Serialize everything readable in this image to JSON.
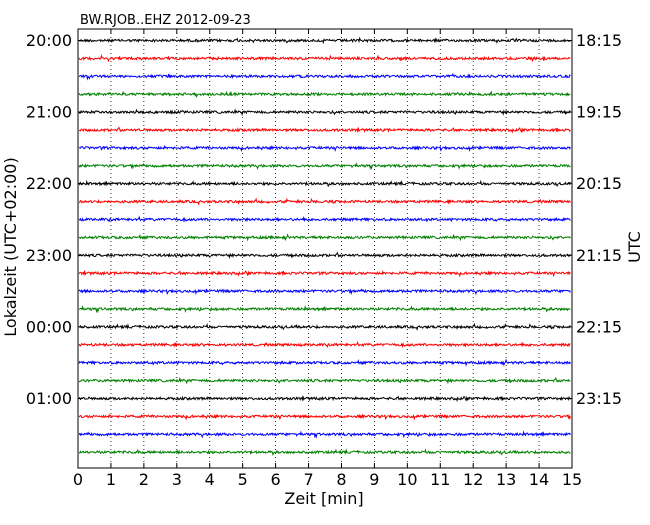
{
  "chart_data": {
    "type": "line",
    "title": "BW.RJOB..EHZ 2012-09-23",
    "xlabel": "Zeit  [min]",
    "ylabel_left": "Lokalzeit (UTC+02:00)",
    "ylabel_right": "UTC",
    "x_range": [
      0,
      15
    ],
    "x_ticks": [
      0,
      1,
      2,
      3,
      4,
      5,
      6,
      7,
      8,
      9,
      10,
      11,
      12,
      13,
      14,
      15
    ],
    "x_grid": "dotted vertical lines at each minute",
    "y_grid": false,
    "trace_interval_min": 15,
    "trace_count": 24,
    "trace_colors": [
      "#000000",
      "#ff0000",
      "#0000ff",
      "#008000"
    ],
    "left_tick_labels": [
      "20:00",
      "21:00",
      "22:00",
      "23:00",
      "00:00",
      "01:00"
    ],
    "right_tick_labels": [
      "18:15",
      "19:15",
      "20:15",
      "21:15",
      "22:15",
      "23:15"
    ],
    "label_every_n_traces": 4
  }
}
